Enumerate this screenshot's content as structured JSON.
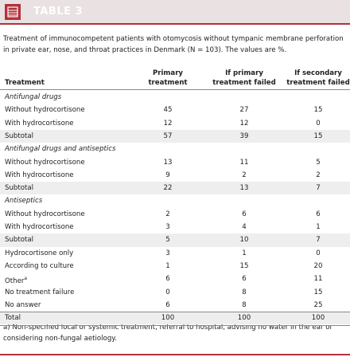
{
  "header": {
    "title": "TABLE 3"
  },
  "caption": "Treatment of immunocompetent patients with otomycosis without tympanic membrane perforation in private ear, nose, and throat practices in Denmark (N = 103). The values are %.",
  "table": {
    "columns": [
      "Treatment",
      "Primary treatment",
      "If primary treatment failed",
      "If secondary treatment failed"
    ],
    "rows": [
      {
        "label": "Antifungal drugs",
        "section": true
      },
      {
        "label": "Without hydrocortisone",
        "cells": [
          45,
          27,
          15
        ]
      },
      {
        "label": "With hydrocortisone",
        "cells": [
          12,
          12,
          0
        ]
      },
      {
        "label": "Subtotal",
        "cells": [
          57,
          39,
          15
        ]
      },
      {
        "label": "Antifungal drugs and antiseptics",
        "section": true
      },
      {
        "label": "Without hydrocortisone",
        "cells": [
          13,
          11,
          5
        ]
      },
      {
        "label": "With hydrocortisone",
        "cells": [
          9,
          2,
          2
        ]
      },
      {
        "label": "Subtotal",
        "cells": [
          22,
          13,
          7
        ]
      },
      {
        "label": "Antiseptics",
        "section": true
      },
      {
        "label": "Without hydrocortisone",
        "cells": [
          2,
          6,
          6
        ]
      },
      {
        "label": "With hydrocortisone",
        "cells": [
          3,
          4,
          1
        ]
      },
      {
        "label": "Subtotal",
        "cells": [
          5,
          10,
          7
        ]
      },
      {
        "label": "Hydrocortisone only",
        "cells": [
          3,
          1,
          0
        ]
      },
      {
        "label": "According to culture",
        "cells": [
          1,
          15,
          20
        ]
      },
      {
        "label": "Other",
        "note": "a",
        "cells": [
          6,
          6,
          11
        ]
      },
      {
        "label": "No treatment failure",
        "cells": [
          0,
          8,
          15
        ]
      },
      {
        "label": "No answer",
        "cells": [
          6,
          8,
          25
        ]
      },
      {
        "label": "Total",
        "cells": [
          100,
          100,
          100
        ]
      }
    ]
  },
  "footnote": "a) Non-specified local or systemic treatment, referral to hospital, advising no water in the ear or considering non-fungal aetiology."
}
